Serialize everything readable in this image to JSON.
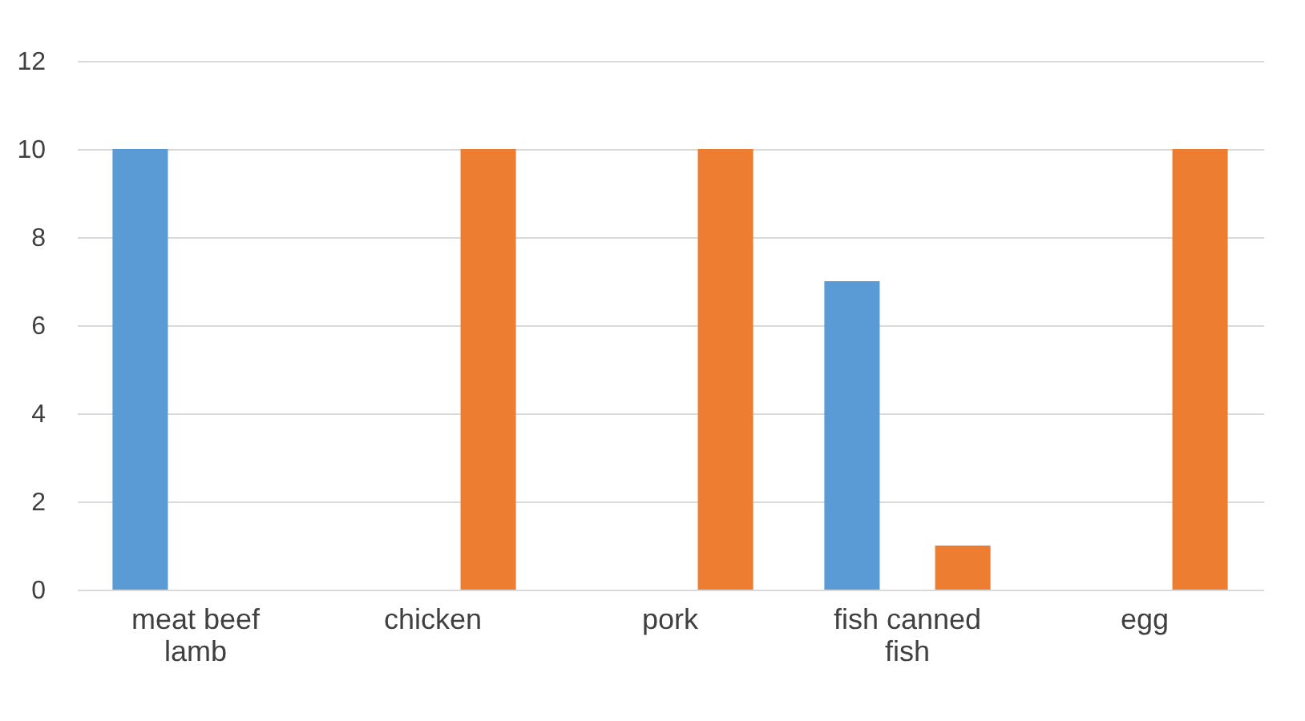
{
  "chart_data": {
    "type": "bar",
    "categories": [
      "meat beef lamb",
      "chicken",
      "pork",
      "fish canned fish",
      "egg"
    ],
    "series": [
      {
        "color": "#5b9bd5",
        "values": [
          10,
          0,
          0,
          7,
          0
        ]
      },
      {
        "color": "#ed7d31",
        "values": [
          0,
          10,
          10,
          1,
          10
        ]
      }
    ],
    "ylim": [
      0,
      12
    ],
    "yticks": [
      0,
      2,
      4,
      6,
      8,
      10,
      12
    ],
    "grid": "y",
    "legend": false
  }
}
